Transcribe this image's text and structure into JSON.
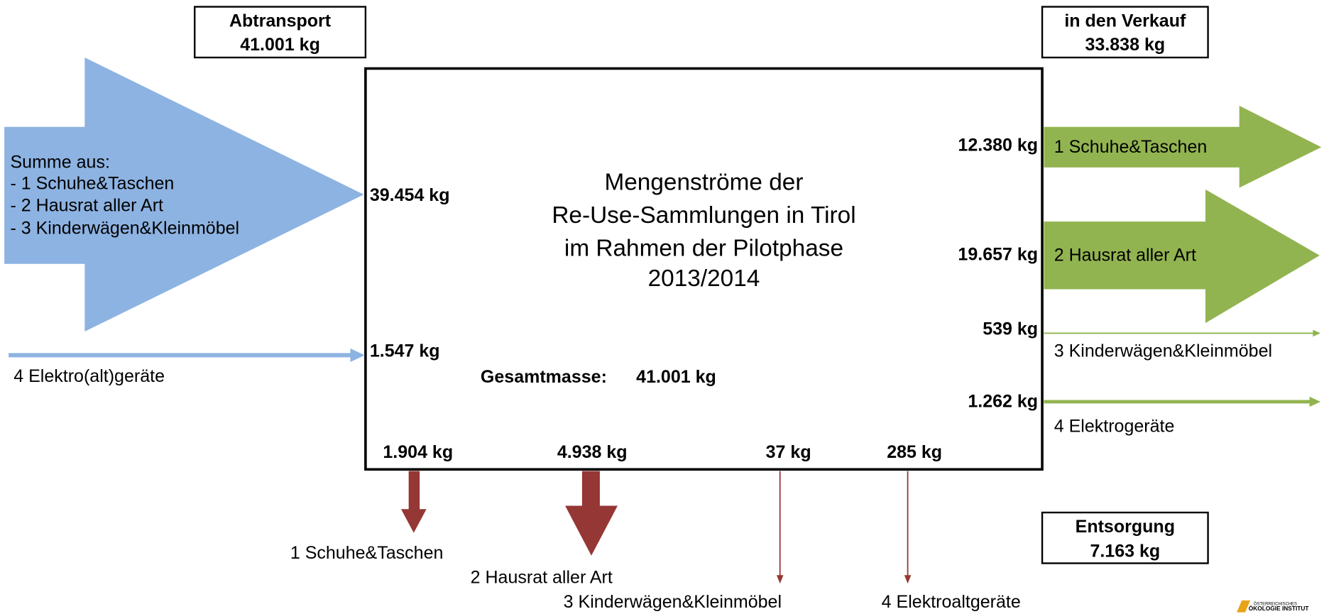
{
  "header_left": {
    "title": "Abtransport",
    "value": "41.001 kg"
  },
  "header_right": {
    "title": "in den Verkauf",
    "value": "33.838 kg"
  },
  "disposal_box": {
    "title": "Entsorgung",
    "value": "7.163 kg"
  },
  "title_lines": [
    "Mengenströme der",
    "Re-Use-Sammlungen in Tirol",
    "im Rahmen der Pilotphase",
    "2013/2014"
  ],
  "total": {
    "label": "Gesamtmasse:",
    "value": "41.001 kg"
  },
  "inputs": [
    {
      "lines": [
        "Summe aus:",
        "- 1 Schuhe&Taschen",
        "- 2 Hausrat aller Art",
        "- 3 Kinderwägen&Kleinmöbel"
      ],
      "value": "39.454 kg"
    },
    {
      "lines": [
        "4 Elektro(alt)geräte"
      ],
      "value": "1.547 kg"
    }
  ],
  "sales": [
    {
      "label": "1 Schuhe&Taschen",
      "value": "12.380 kg"
    },
    {
      "label": "2 Hausrat aller Art",
      "value": "19.657 kg"
    },
    {
      "label": "3 Kinderwägen&Kleinmöbel",
      "value": "539 kg"
    },
    {
      "label": "4 Elektrogeräte",
      "value": "1.262 kg"
    }
  ],
  "disposal": [
    {
      "label": "1 Schuhe&Taschen",
      "value": "1.904 kg"
    },
    {
      "label": "2 Hausrat aller Art",
      "value": "4.938 kg"
    },
    {
      "label": "3 Kinderwägen&Kleinmöbel",
      "value": "37 kg"
    },
    {
      "label": "4 Elektroaltgeräte",
      "value": "285 kg"
    }
  ],
  "logo": [
    "ÖSTERREICHISCHES",
    "ÖKOLOGIE INSTITUT"
  ]
}
